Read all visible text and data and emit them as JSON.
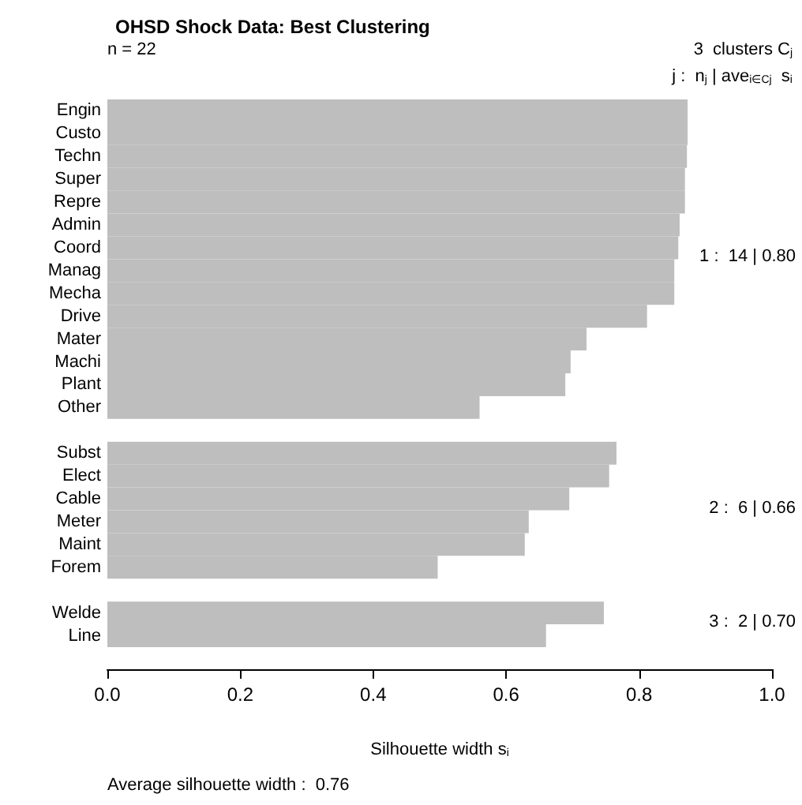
{
  "chart_data": {
    "type": "bar",
    "orientation": "horizontal",
    "title": "OHSD Shock Data: Best Clustering",
    "xlabel": "Silhouette width s$_{i}$",
    "categories": [
      "Engin",
      "Custo",
      "Techn",
      "Super",
      "Repre",
      "Admin",
      "Coord",
      "Manag",
      "Mecha",
      "Drive",
      "Mater",
      "Machi",
      "Plant",
      "Other",
      null,
      "Subst",
      "Elect",
      "Cable",
      "Meter",
      "Maint",
      "Forem",
      null,
      "Welde",
      "Line"
    ],
    "values": [
      0.873,
      0.873,
      0.872,
      0.869,
      0.869,
      0.861,
      0.859,
      0.853,
      0.853,
      0.812,
      0.721,
      0.697,
      0.689,
      0.56,
      null,
      0.766,
      0.755,
      0.695,
      0.634,
      0.628,
      0.497,
      null,
      0.747,
      0.66
    ],
    "color": "#bebebe",
    "xlim": [
      0,
      1
    ],
    "xticks": [
      {
        "value": 0,
        "label": "0.0"
      },
      0.2,
      0.4,
      0.6,
      0.8,
      {
        "value": 1,
        "label": "1.0"
      }
    ],
    "grid": false,
    "annotations": [
      "n = 22",
      "3  clusters C$_{j}$",
      "j :  n$_{j}$ | ave$_{i∈Cj}$  s$_{i}$",
      "1 :  14 | 0.80",
      "2 :  6 | 0.66",
      "3 :  2 | 0.70",
      "Average silhouette width :  0.76"
    ]
  }
}
